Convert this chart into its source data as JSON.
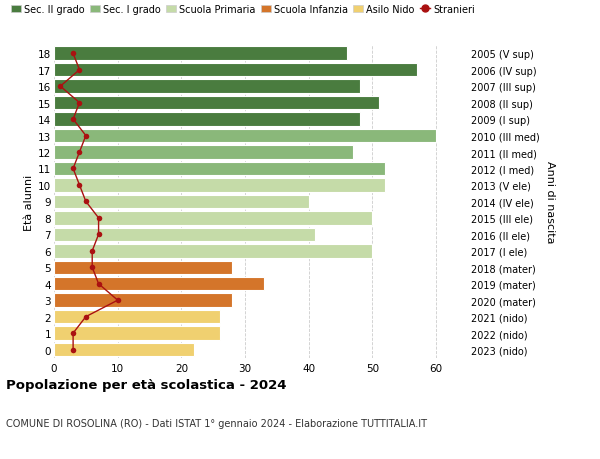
{
  "ages": [
    18,
    17,
    16,
    15,
    14,
    13,
    12,
    11,
    10,
    9,
    8,
    7,
    6,
    5,
    4,
    3,
    2,
    1,
    0
  ],
  "years": [
    "2005 (V sup)",
    "2006 (IV sup)",
    "2007 (III sup)",
    "2008 (II sup)",
    "2009 (I sup)",
    "2010 (III med)",
    "2011 (II med)",
    "2012 (I med)",
    "2013 (V ele)",
    "2014 (IV ele)",
    "2015 (III ele)",
    "2016 (II ele)",
    "2017 (I ele)",
    "2018 (mater)",
    "2019 (mater)",
    "2020 (mater)",
    "2021 (nido)",
    "2022 (nido)",
    "2023 (nido)"
  ],
  "bar_values": [
    46,
    57,
    48,
    51,
    48,
    60,
    47,
    52,
    52,
    40,
    50,
    41,
    50,
    28,
    33,
    28,
    26,
    26,
    22
  ],
  "bar_colors": [
    "#4a7c3f",
    "#4a7c3f",
    "#4a7c3f",
    "#4a7c3f",
    "#4a7c3f",
    "#8ab87a",
    "#8ab87a",
    "#8ab87a",
    "#c5dba8",
    "#c5dba8",
    "#c5dba8",
    "#c5dba8",
    "#c5dba8",
    "#d4752a",
    "#d4752a",
    "#d4752a",
    "#f0d070",
    "#f0d070",
    "#f0d070"
  ],
  "stranieri_values": [
    3,
    4,
    1,
    4,
    3,
    5,
    4,
    3,
    4,
    5,
    7,
    7,
    6,
    6,
    7,
    10,
    5,
    3,
    3
  ],
  "stranieri_color": "#aa1111",
  "legend_labels": [
    "Sec. II grado",
    "Sec. I grado",
    "Scuola Primaria",
    "Scuola Infanzia",
    "Asilo Nido",
    "Stranieri"
  ],
  "legend_colors": [
    "#4a7c3f",
    "#8ab87a",
    "#c5dba8",
    "#d4752a",
    "#f0d070",
    "#aa1111"
  ],
  "ylabel_left": "Età alunni",
  "ylabel_right": "Anni di nascita",
  "title": "Popolazione per età scolastica - 2024",
  "subtitle": "COMUNE DI ROSOLINA (RO) - Dati ISTAT 1° gennaio 2024 - Elaborazione TUTTITALIA.IT",
  "xlim": [
    0,
    65
  ],
  "bg_color": "#ffffff",
  "grid_color": "#cccccc"
}
